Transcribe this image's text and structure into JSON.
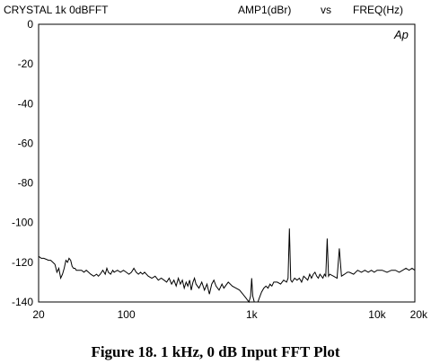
{
  "chart_data": {
    "type": "line",
    "header": {
      "left": "CRYSTAL   1k 0dBFFT",
      "y_name": "AMP1(dBr)",
      "vs": "vs",
      "x_name": "FREQ(Hz)"
    },
    "logo": "Ap",
    "x_scale": "log",
    "xlim": [
      20,
      20000
    ],
    "ylim": [
      -140,
      0
    ],
    "grid": false,
    "y_ticks": [
      0,
      -20,
      -40,
      -60,
      -80,
      -100,
      -120,
      -140
    ],
    "y_tick_labels": [
      "0",
      "-20",
      "-40",
      "-60",
      "-80",
      "-100",
      "-120",
      "-140"
    ],
    "x_ticks": [
      20,
      100,
      1000,
      10000,
      20000
    ],
    "x_tick_labels": [
      "20",
      "100",
      "1k",
      "10k",
      "20k"
    ],
    "series": [
      {
        "points": [
          [
            20,
            -117
          ],
          [
            21,
            -118
          ],
          [
            22,
            -118
          ],
          [
            23,
            -118.5
          ],
          [
            24,
            -119
          ],
          [
            25,
            -119
          ],
          [
            26,
            -120
          ],
          [
            27,
            -121
          ],
          [
            28,
            -125
          ],
          [
            29,
            -123
          ],
          [
            30,
            -128
          ],
          [
            31,
            -126
          ],
          [
            32,
            -123
          ],
          [
            33,
            -119
          ],
          [
            34,
            -120
          ],
          [
            35,
            -118
          ],
          [
            36,
            -119
          ],
          [
            37,
            -122
          ],
          [
            38,
            -123
          ],
          [
            39,
            -123
          ],
          [
            40,
            -124
          ],
          [
            42,
            -124
          ],
          [
            44,
            -124
          ],
          [
            46,
            -125
          ],
          [
            48,
            -124
          ],
          [
            50,
            -125
          ],
          [
            52,
            -126
          ],
          [
            55,
            -127
          ],
          [
            58,
            -126
          ],
          [
            60,
            -127
          ],
          [
            62,
            -126
          ],
          [
            65,
            -124
          ],
          [
            68,
            -126
          ],
          [
            70,
            -123
          ],
          [
            72,
            -125
          ],
          [
            75,
            -126
          ],
          [
            78,
            -124
          ],
          [
            80,
            -125
          ],
          [
            85,
            -124
          ],
          [
            90,
            -125
          ],
          [
            95,
            -124
          ],
          [
            100,
            -125
          ],
          [
            105,
            -126
          ],
          [
            110,
            -125
          ],
          [
            115,
            -123
          ],
          [
            120,
            -125
          ],
          [
            125,
            -126
          ],
          [
            130,
            -125
          ],
          [
            135,
            -126
          ],
          [
            140,
            -125
          ],
          [
            150,
            -127
          ],
          [
            160,
            -128
          ],
          [
            170,
            -127
          ],
          [
            180,
            -129
          ],
          [
            190,
            -128
          ],
          [
            200,
            -129
          ],
          [
            210,
            -130
          ],
          [
            220,
            -128
          ],
          [
            230,
            -131
          ],
          [
            240,
            -129
          ],
          [
            250,
            -132
          ],
          [
            260,
            -128
          ],
          [
            270,
            -131
          ],
          [
            280,
            -129
          ],
          [
            290,
            -133
          ],
          [
            300,
            -130
          ],
          [
            310,
            -132
          ],
          [
            320,
            -129
          ],
          [
            330,
            -134
          ],
          [
            340,
            -130
          ],
          [
            350,
            -128
          ],
          [
            360,
            -131
          ],
          [
            380,
            -133
          ],
          [
            400,
            -130
          ],
          [
            420,
            -134
          ],
          [
            440,
            -131
          ],
          [
            460,
            -136
          ],
          [
            480,
            -131
          ],
          [
            500,
            -129
          ],
          [
            520,
            -132
          ],
          [
            550,
            -134
          ],
          [
            580,
            -131
          ],
          [
            600,
            -133
          ],
          [
            650,
            -130
          ],
          [
            700,
            -132
          ],
          [
            750,
            -133
          ],
          [
            800,
            -134
          ],
          [
            850,
            -136
          ],
          [
            900,
            -138
          ],
          [
            950,
            -140
          ],
          [
            980,
            -137
          ],
          [
            1000,
            -128
          ],
          [
            1020,
            -137
          ],
          [
            1050,
            -140
          ],
          [
            1080,
            -141
          ],
          [
            1120,
            -140
          ],
          [
            1150,
            -138
          ],
          [
            1200,
            -135
          ],
          [
            1250,
            -133
          ],
          [
            1300,
            -132
          ],
          [
            1350,
            -133
          ],
          [
            1400,
            -131
          ],
          [
            1450,
            -132
          ],
          [
            1500,
            -130
          ],
          [
            1600,
            -130
          ],
          [
            1700,
            -131
          ],
          [
            1800,
            -129
          ],
          [
            1900,
            -130
          ],
          [
            1950,
            -128
          ],
          [
            2000,
            -103
          ],
          [
            2050,
            -129
          ],
          [
            2100,
            -130
          ],
          [
            2200,
            -128
          ],
          [
            2300,
            -129
          ],
          [
            2400,
            -128
          ],
          [
            2500,
            -130
          ],
          [
            2600,
            -127
          ],
          [
            2700,
            -128
          ],
          [
            2800,
            -129
          ],
          [
            2900,
            -126
          ],
          [
            3000,
            -128
          ],
          [
            3100,
            -126
          ],
          [
            3200,
            -125
          ],
          [
            3300,
            -127
          ],
          [
            3400,
            -128
          ],
          [
            3500,
            -126
          ],
          [
            3600,
            -127
          ],
          [
            3700,
            -128
          ],
          [
            3800,
            -126
          ],
          [
            3900,
            -127
          ],
          [
            4000,
            -108
          ],
          [
            4100,
            -127
          ],
          [
            4200,
            -126
          ],
          [
            4500,
            -127
          ],
          [
            4800,
            -128
          ],
          [
            5000,
            -113
          ],
          [
            5200,
            -127
          ],
          [
            5500,
            -126
          ],
          [
            5800,
            -125
          ],
          [
            6000,
            -125
          ],
          [
            6500,
            -126
          ],
          [
            7000,
            -124
          ],
          [
            7500,
            -125
          ],
          [
            8000,
            -124
          ],
          [
            8500,
            -125
          ],
          [
            9000,
            -124
          ],
          [
            9500,
            -125
          ],
          [
            10000,
            -124
          ],
          [
            11000,
            -124
          ],
          [
            12000,
            -125
          ],
          [
            13000,
            -124
          ],
          [
            14000,
            -124
          ],
          [
            15000,
            -125
          ],
          [
            16000,
            -124
          ],
          [
            17000,
            -123
          ],
          [
            18000,
            -124
          ],
          [
            19000,
            -123
          ],
          [
            20000,
            -124
          ]
        ]
      }
    ]
  },
  "caption": "Figure 18.  1 kHz, 0 dB Input FFT Plot"
}
